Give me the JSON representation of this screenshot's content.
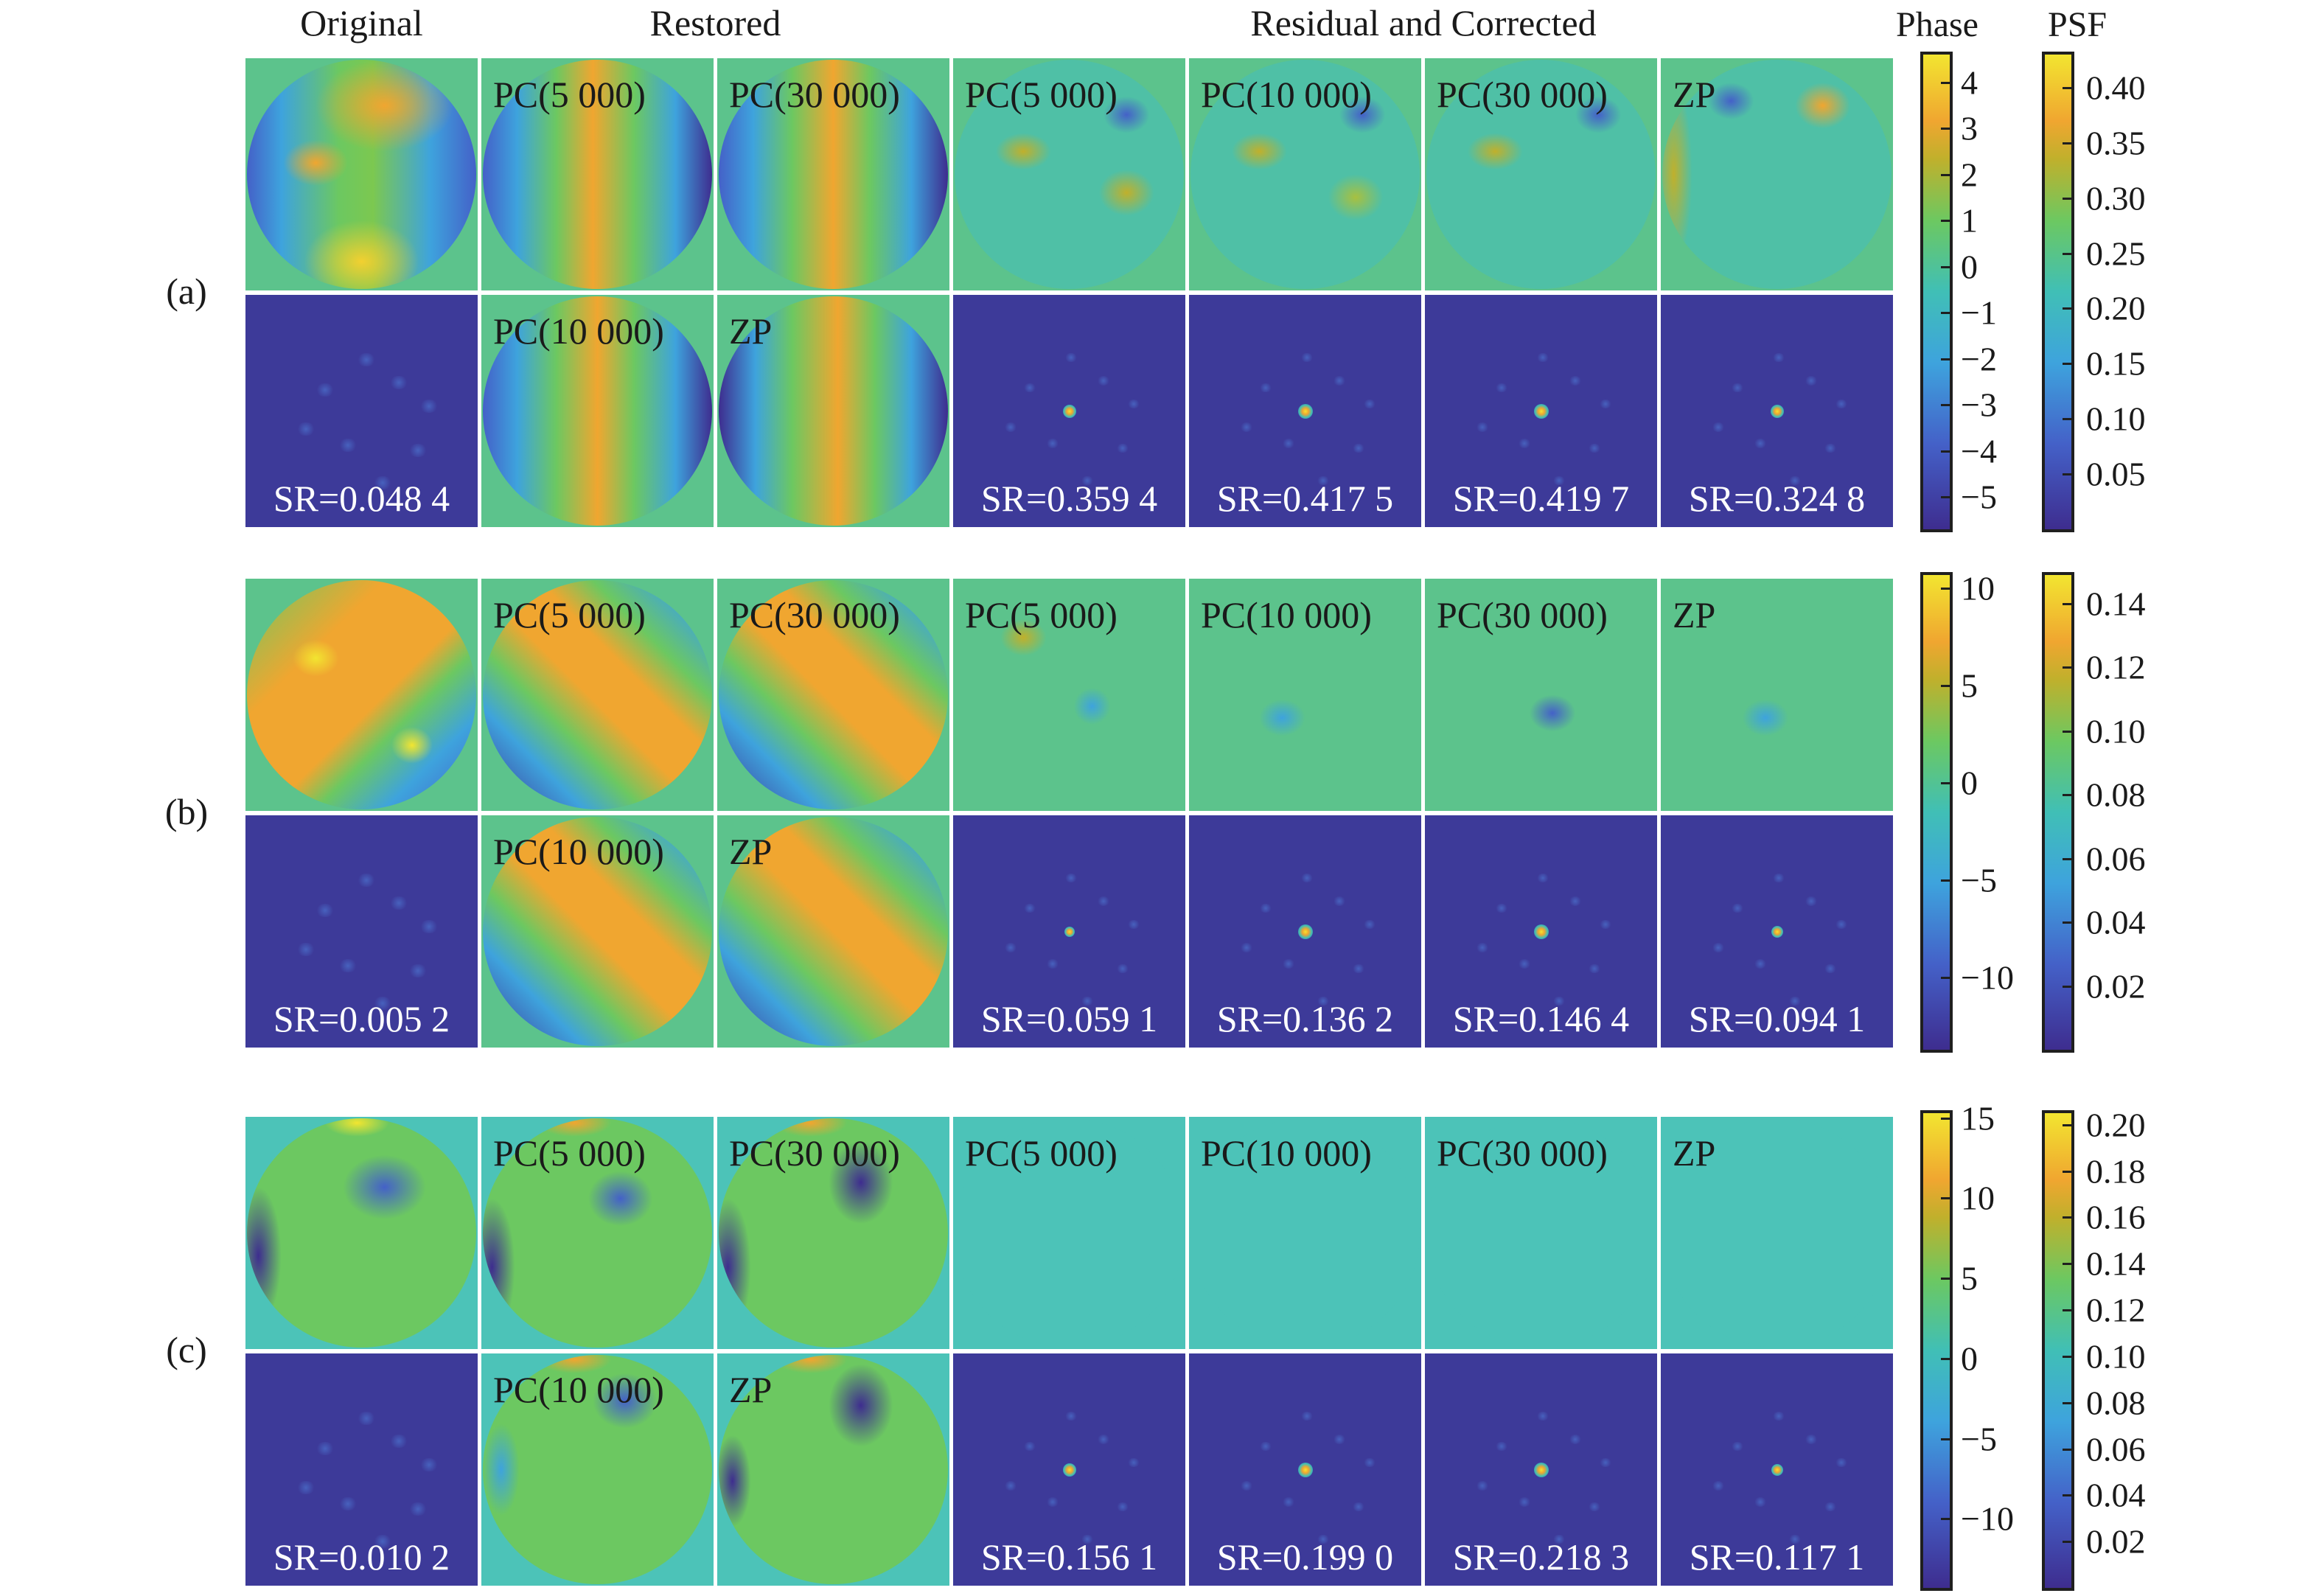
{
  "headers": {
    "original": "Original",
    "restored": "Restored",
    "residual": "Residual and Corrected",
    "phase": "Phase",
    "psf": "PSF"
  },
  "rows": [
    {
      "label": "(a)",
      "top_labels": [
        "",
        "PC(5 000)",
        "PC(30 000)",
        "PC(5 000)",
        "PC(10 000)",
        "PC(30 000)",
        "ZP"
      ],
      "bottom_labels": [
        "",
        "PC(10 000)",
        "ZP",
        "",
        "",
        "",
        ""
      ],
      "sr": [
        "SR=0.048 4",
        "",
        "",
        "SR=0.359 4",
        "SR=0.417 5",
        "SR=0.419 7",
        "SR=0.324 8"
      ],
      "phase_ticks": [
        "4",
        "3",
        "2",
        "1",
        "0",
        "−1",
        "−2",
        "−3",
        "−4",
        "−5"
      ],
      "phase_tick_values": [
        4,
        3,
        2,
        1,
        0,
        -1,
        -2,
        -3,
        -4,
        -5
      ],
      "phase_range": [
        -5.7,
        4.6
      ],
      "psf_ticks": [
        "0.40",
        "0.35",
        "0.30",
        "0.25",
        "0.20",
        "0.15",
        "0.10",
        "0.05"
      ],
      "psf_tick_values": [
        0.4,
        0.35,
        0.3,
        0.25,
        0.2,
        0.15,
        0.1,
        0.05
      ],
      "psf_range": [
        0.0,
        0.43
      ]
    },
    {
      "label": "(b)",
      "top_labels": [
        "",
        "PC(5 000)",
        "PC(30 000)",
        "PC(5 000)",
        "PC(10 000)",
        "PC(30 000)",
        "ZP"
      ],
      "bottom_labels": [
        "",
        "PC(10 000)",
        "ZP",
        "",
        "",
        "",
        ""
      ],
      "sr": [
        "SR=0.005 2",
        "",
        "",
        "SR=0.059 1",
        "SR=0.136 2",
        "SR=0.146 4",
        "SR=0.094 1"
      ],
      "phase_ticks": [
        "10",
        "5",
        "0",
        "−5",
        "−10"
      ],
      "phase_tick_values": [
        10,
        5,
        0,
        -5,
        -10
      ],
      "phase_range": [
        -13.7,
        10.7
      ],
      "psf_ticks": [
        "0.14",
        "0.12",
        "0.10",
        "0.08",
        "0.06",
        "0.04",
        "0.02"
      ],
      "psf_tick_values": [
        0.14,
        0.12,
        0.1,
        0.08,
        0.06,
        0.04,
        0.02
      ],
      "psf_range": [
        0.0,
        0.149
      ]
    },
    {
      "label": "(c)",
      "top_labels": [
        "",
        "PC(5 000)",
        "PC(30 000)",
        "PC(5 000)",
        "PC(10 000)",
        "PC(30 000)",
        "ZP"
      ],
      "bottom_labels": [
        "",
        "PC(10 000)",
        "ZP",
        "",
        "",
        "",
        ""
      ],
      "sr": [
        "SR=0.010 2",
        "",
        "",
        "SR=0.156 1",
        "SR=0.199 0",
        "SR=0.218 3",
        "SR=0.117 1"
      ],
      "phase_ticks": [
        "15",
        "10",
        "5",
        "0",
        "−5",
        "−10"
      ],
      "phase_tick_values": [
        15,
        10,
        5,
        0,
        -5,
        -10
      ],
      "phase_range": [
        -14.3,
        15.3
      ],
      "psf_ticks": [
        "0.20",
        "0.18",
        "0.16",
        "0.14",
        "0.12",
        "0.10",
        "0.08",
        "0.06",
        "0.04",
        "0.02"
      ],
      "psf_tick_values": [
        0.2,
        0.18,
        0.16,
        0.14,
        0.12,
        0.1,
        0.08,
        0.06,
        0.04,
        0.02
      ],
      "psf_range": [
        0.0,
        0.205
      ]
    }
  ],
  "colormap": [
    "#3e2d8f",
    "#4461c8",
    "#3ea3dd",
    "#40bfb6",
    "#6cc861",
    "#c0b02c",
    "#f0a630",
    "#f2e530"
  ]
}
